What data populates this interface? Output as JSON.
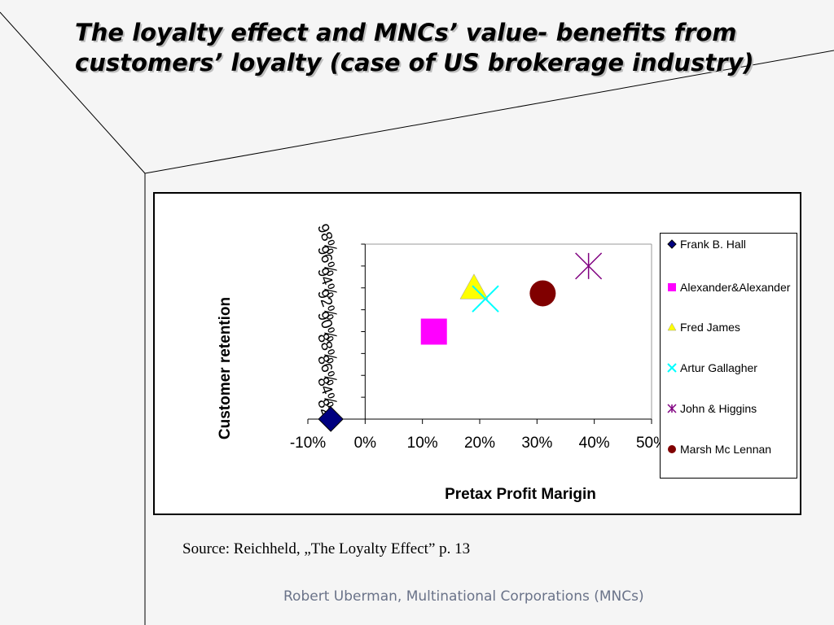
{
  "slide": {
    "title": "The loyalty effect and MNCs’ value- benefits from customers’ loyalty (case of US brokerage industry)",
    "source": "Source: Reichheld, „The Loyalty Effect” p. 13",
    "footer": "Robert Uberman, Multinational Corporations (MNCs)"
  },
  "chart_data": {
    "type": "scatter",
    "title": "",
    "xlabel": "Pretax Profit Marigin",
    "ylabel": "Customer retention",
    "xlim": [
      -10,
      50
    ],
    "ylim": [
      82,
      98
    ],
    "x_ticks": [
      "-10%",
      "0%",
      "10%",
      "20%",
      "30%",
      "40%",
      "50%"
    ],
    "y_ticks": [
      "82%",
      "84%",
      "86%",
      "88%",
      "90%",
      "92%",
      "94%",
      "96%",
      "98%"
    ],
    "grid": false,
    "legend_position": "right",
    "series": [
      {
        "name": "Frank B. Hall",
        "marker": "diamond",
        "color": "#000080",
        "x": -6,
        "y": 82
      },
      {
        "name": "Alexander&Alexander",
        "marker": "square",
        "color": "#ff00ff",
        "x": 12,
        "y": 90
      },
      {
        "name": "Fred James",
        "marker": "triangle",
        "color": "#ffff00",
        "x": 19,
        "y": 94
      },
      {
        "name": "Artur Gallagher",
        "marker": "x",
        "color": "#00ffff",
        "x": 21,
        "y": 93
      },
      {
        "name": "John & Higgins",
        "marker": "star",
        "color": "#800080",
        "x": 39,
        "y": 96
      },
      {
        "name": "Marsh Mc Lennan",
        "marker": "circle",
        "color": "#800000",
        "x": 31,
        "y": 93.5
      }
    ]
  }
}
